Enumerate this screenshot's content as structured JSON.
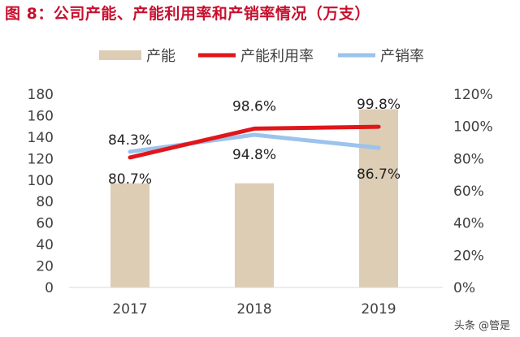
{
  "title": "图 8：公司产能、产能利用率和产销率情况（万支）",
  "watermark": "头条 @管是",
  "colors": {
    "title": "#c8102e",
    "capacity": "#dccdb4",
    "utilization": "#e0161b",
    "sales_ratio": "#9cc3ec",
    "axis_text": "#404040",
    "axis_line": "#d9d9d9"
  },
  "chart_data": {
    "type": "bar",
    "categories": [
      "2017",
      "2018",
      "2019"
    ],
    "series": [
      {
        "name": "产能",
        "type": "bar",
        "axis": "left",
        "values": [
          97,
          97,
          166
        ]
      },
      {
        "name": "产能利用率",
        "type": "line",
        "axis": "right",
        "values": [
          80.7,
          98.6,
          99.8
        ],
        "labels": [
          "80.7%",
          "98.6%",
          "99.8%"
        ]
      },
      {
        "name": "产销率",
        "type": "line",
        "axis": "right",
        "values": [
          84.3,
          94.8,
          86.7
        ],
        "labels": [
          "84.3%",
          "94.8%",
          "86.7%"
        ]
      }
    ],
    "left_axis": {
      "min": 0,
      "max": 180,
      "ticks": [
        "0",
        "20",
        "40",
        "60",
        "80",
        "100",
        "120",
        "140",
        "160",
        "180"
      ]
    },
    "right_axis": {
      "min": 0,
      "max": 120,
      "ticks": [
        "0%",
        "20%",
        "40%",
        "60%",
        "80%",
        "100%",
        "120%"
      ]
    },
    "legend_position": "top",
    "grid": false
  }
}
